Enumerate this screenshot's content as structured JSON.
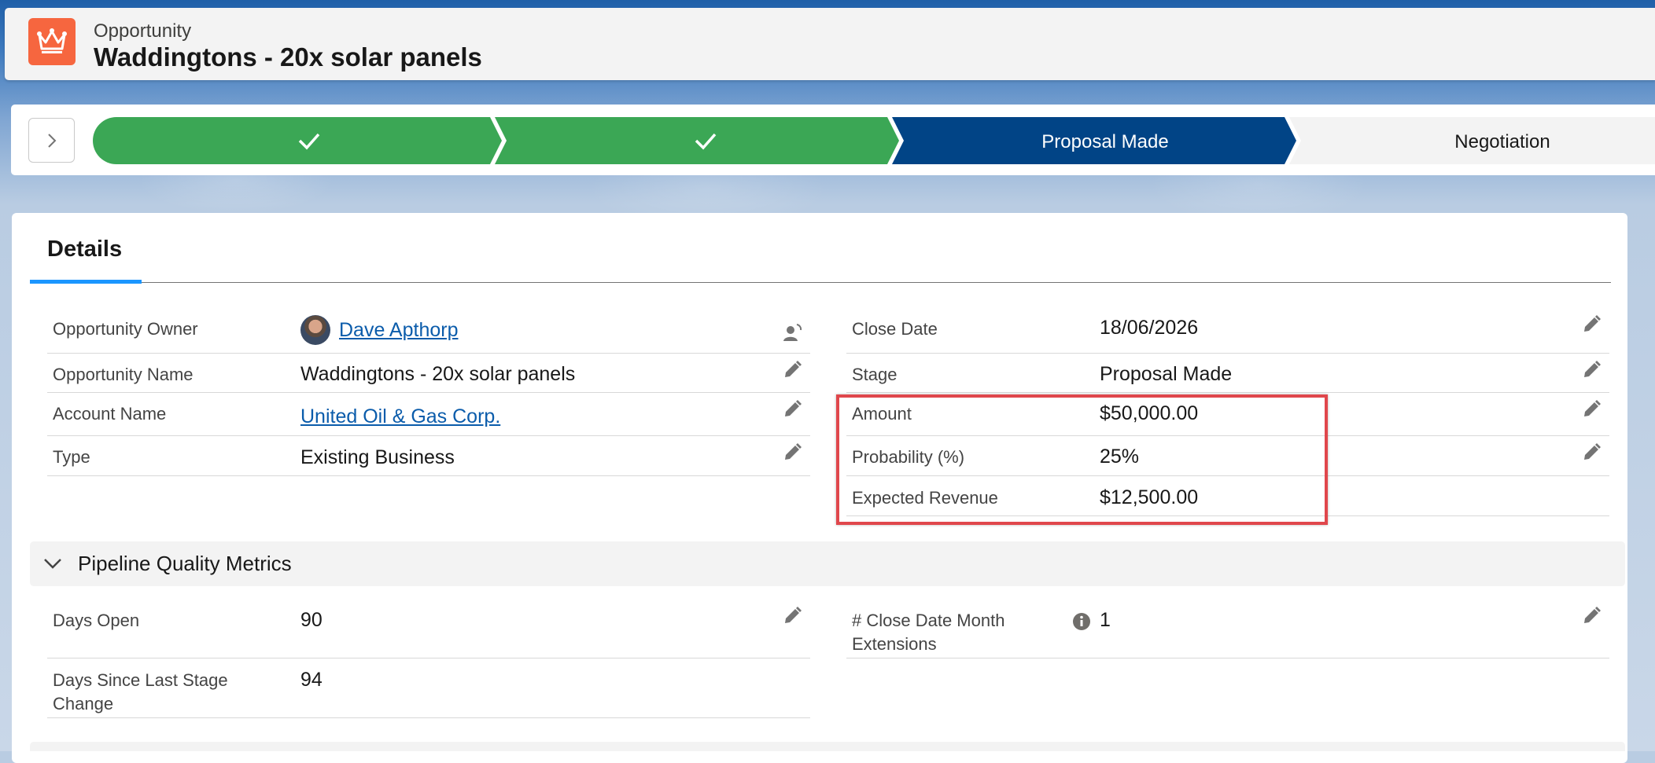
{
  "header": {
    "object_type": "Opportunity",
    "record_title": "Waddingtons - 20x solar panels"
  },
  "path": {
    "stages": [
      {
        "label": "",
        "state": "complete"
      },
      {
        "label": "",
        "state": "complete"
      },
      {
        "label": "Proposal Made",
        "state": "current"
      },
      {
        "label": "Negotiation",
        "state": "upcoming"
      }
    ]
  },
  "tabs": {
    "details": "Details"
  },
  "fields_left": [
    {
      "label": "Opportunity Owner",
      "value": "Dave Apthorp"
    },
    {
      "label": "Opportunity Name",
      "value": "Waddingtons - 20x solar panels"
    },
    {
      "label": "Account Name",
      "value": "United Oil & Gas Corp."
    },
    {
      "label": "Type",
      "value": "Existing Business"
    }
  ],
  "fields_right": [
    {
      "label": "Close Date",
      "value": "18/06/2026"
    },
    {
      "label": "Stage",
      "value": "Proposal Made"
    },
    {
      "label": "Amount",
      "value": "$50,000.00"
    },
    {
      "label": "Probability (%)",
      "value": "25%"
    },
    {
      "label": "Expected Revenue",
      "value": "$12,500.00"
    }
  ],
  "section": {
    "title": "Pipeline Quality Metrics",
    "fields_left": [
      {
        "label": "Days Open",
        "value": "90"
      },
      {
        "label": "Days Since Last Stage Change",
        "value": "94"
      }
    ],
    "fields_right": [
      {
        "label": "# Close Date Month Extensions",
        "value": "1"
      }
    ]
  },
  "colors": {
    "complete": "#3ba755",
    "current": "#014486",
    "upcoming": "#f3f3f3",
    "link": "#0b5cab",
    "highlight": "#e0474c"
  }
}
